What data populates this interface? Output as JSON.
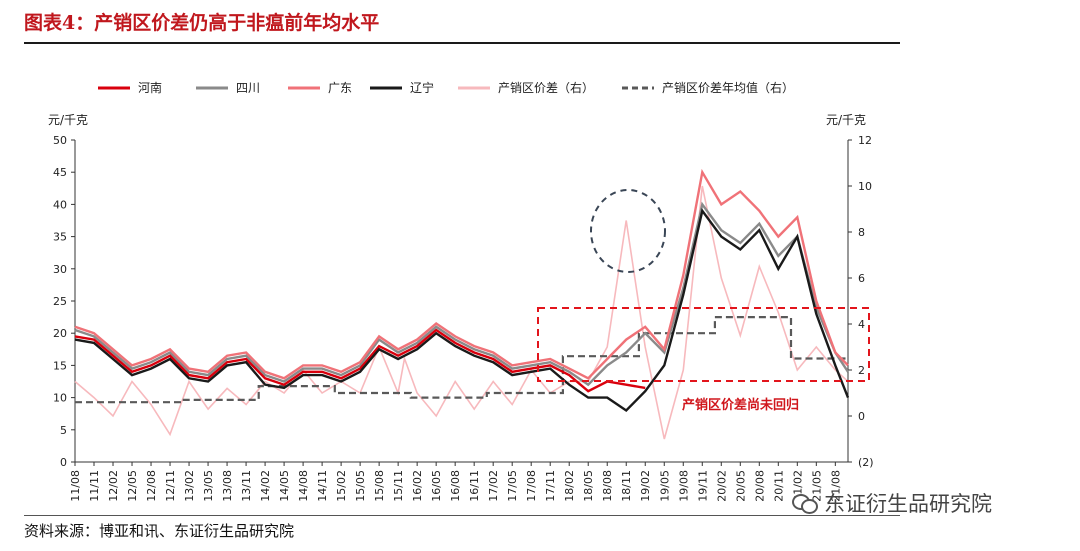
{
  "title": "图表4：产销区价差仍高于非瘟前年均水平",
  "source": "资料来源：博亚和讯、东证衍生品研究院",
  "watermark": "东证衍生品研究院",
  "chart_data": {
    "type": "line",
    "left_unit": "元/千克",
    "right_unit": "元/千克",
    "left_ylim": [
      0,
      50
    ],
    "left_ticks": [
      "0",
      "5",
      "10",
      "15",
      "20",
      "25",
      "30",
      "35",
      "40",
      "45",
      "50"
    ],
    "right_ylim": [
      -2,
      12
    ],
    "right_ticks": [
      "(2)",
      "0",
      "2",
      "4",
      "6",
      "8",
      "10",
      "12"
    ],
    "x_range": [
      "2011-08",
      "2021-10"
    ],
    "x_tick_labels": [
      "11/08",
      "11/11",
      "12/02",
      "12/05",
      "12/08",
      "12/11",
      "13/02",
      "13/05",
      "13/08",
      "13/11",
      "14/02",
      "14/05",
      "14/08",
      "14/11",
      "15/02",
      "15/05",
      "15/08",
      "15/11",
      "16/02",
      "16/05",
      "16/08",
      "16/11",
      "17/02",
      "17/05",
      "17/08",
      "17/11",
      "18/02",
      "18/05",
      "18/08",
      "18/11",
      "19/02",
      "19/05",
      "19/08",
      "19/11",
      "20/02",
      "20/05",
      "20/08",
      "20/11",
      "21/02",
      "21/05",
      "21/08"
    ],
    "annotation": "产销区价差尚未回归",
    "legend": [
      "河南",
      "四川",
      "广东",
      "辽宁",
      "产销区价差（右）",
      "产销区价差年均值（右）"
    ],
    "colors": {
      "henan": "#d9000d",
      "sichuan": "#8a8a8a",
      "guangdong": "#f07278",
      "liaoning": "#1a1a1a",
      "spread": "#f7b9bd",
      "spread_avg": "#595959"
    },
    "henan": [
      [
        "2011-08",
        19.5
      ],
      [
        "2011-11",
        19
      ],
      [
        "2012-02",
        16.5
      ],
      [
        "2012-05",
        14
      ],
      [
        "2012-08",
        15
      ],
      [
        "2012-11",
        16.5
      ],
      [
        "2013-02",
        13.5
      ],
      [
        "2013-05",
        13
      ],
      [
        "2013-08",
        15.5
      ],
      [
        "2013-11",
        16
      ],
      [
        "2014-02",
        13
      ],
      [
        "2014-05",
        12
      ],
      [
        "2014-08",
        14
      ],
      [
        "2014-11",
        14
      ],
      [
        "2015-02",
        13
      ],
      [
        "2015-05",
        14.5
      ],
      [
        "2015-08",
        18
      ],
      [
        "2015-11",
        16.5
      ],
      [
        "2016-02",
        18
      ],
      [
        "2016-05",
        20.5
      ],
      [
        "2016-08",
        18.5
      ],
      [
        "2016-11",
        17
      ],
      [
        "2017-02",
        16
      ],
      [
        "2017-05",
        14
      ],
      [
        "2017-08",
        14.5
      ],
      [
        "2017-11",
        15
      ],
      [
        "2018-02",
        13.5
      ],
      [
        "2018-05",
        11
      ],
      [
        "2018-08",
        12.5
      ],
      [
        "2018-11",
        12
      ],
      [
        "2019-02",
        11.5
      ]
    ],
    "sichuan": [
      [
        "2011-08",
        20.5
      ],
      [
        "2011-11",
        19.5
      ],
      [
        "2012-02",
        17
      ],
      [
        "2012-05",
        14.5
      ],
      [
        "2012-08",
        15.5
      ],
      [
        "2012-11",
        17
      ],
      [
        "2013-02",
        14
      ],
      [
        "2013-05",
        13.5
      ],
      [
        "2013-08",
        16
      ],
      [
        "2013-11",
        16.5
      ],
      [
        "2014-02",
        13.5
      ],
      [
        "2014-05",
        12.5
      ],
      [
        "2014-08",
        14.5
      ],
      [
        "2014-11",
        14.5
      ],
      [
        "2015-02",
        13.5
      ],
      [
        "2015-05",
        15
      ],
      [
        "2015-08",
        19
      ],
      [
        "2015-11",
        17
      ],
      [
        "2016-02",
        18.5
      ],
      [
        "2016-05",
        21
      ],
      [
        "2016-08",
        19
      ],
      [
        "2016-11",
        17.5
      ],
      [
        "2017-02",
        16.5
      ],
      [
        "2017-05",
        14.5
      ],
      [
        "2017-08",
        15
      ],
      [
        "2017-11",
        15.5
      ],
      [
        "2018-02",
        14
      ],
      [
        "2018-05",
        12
      ],
      [
        "2018-08",
        15
      ],
      [
        "2018-11",
        17
      ],
      [
        "2019-02",
        20
      ],
      [
        "2019-05",
        17
      ],
      [
        "2019-08",
        27
      ],
      [
        "2019-11",
        40
      ],
      [
        "2020-02",
        36
      ],
      [
        "2020-05",
        34
      ],
      [
        "2020-08",
        37
      ],
      [
        "2020-11",
        32
      ],
      [
        "2021-02",
        35
      ],
      [
        "2021-05",
        24
      ],
      [
        "2021-08",
        17
      ],
      [
        "2021-10",
        14
      ]
    ],
    "guangdong": [
      [
        "2011-08",
        21
      ],
      [
        "2011-11",
        20
      ],
      [
        "2012-02",
        17.5
      ],
      [
        "2012-05",
        15
      ],
      [
        "2012-08",
        16
      ],
      [
        "2012-11",
        17.5
      ],
      [
        "2013-02",
        14.5
      ],
      [
        "2013-05",
        14
      ],
      [
        "2013-08",
        16.5
      ],
      [
        "2013-11",
        17
      ],
      [
        "2014-02",
        14
      ],
      [
        "2014-05",
        13
      ],
      [
        "2014-08",
        15
      ],
      [
        "2014-11",
        15
      ],
      [
        "2015-02",
        14
      ],
      [
        "2015-05",
        15.5
      ],
      [
        "2015-08",
        19.5
      ],
      [
        "2015-11",
        17.5
      ],
      [
        "2016-02",
        19
      ],
      [
        "2016-05",
        21.5
      ],
      [
        "2016-08",
        19.5
      ],
      [
        "2016-11",
        18
      ],
      [
        "2017-02",
        17
      ],
      [
        "2017-05",
        15
      ],
      [
        "2017-08",
        15.5
      ],
      [
        "2017-11",
        16
      ],
      [
        "2018-02",
        14.5
      ],
      [
        "2018-05",
        13
      ],
      [
        "2018-08",
        16
      ],
      [
        "2018-11",
        19
      ],
      [
        "2019-02",
        21
      ],
      [
        "2019-05",
        17.5
      ],
      [
        "2019-08",
        29
      ],
      [
        "2019-11",
        45
      ],
      [
        "2020-02",
        40
      ],
      [
        "2020-05",
        42
      ],
      [
        "2020-08",
        39
      ],
      [
        "2020-11",
        35
      ],
      [
        "2021-02",
        38
      ],
      [
        "2021-05",
        25
      ],
      [
        "2021-08",
        17
      ],
      [
        "2021-10",
        15
      ]
    ],
    "liaoning": [
      [
        "2011-08",
        19
      ],
      [
        "2011-11",
        18.5
      ],
      [
        "2012-02",
        16
      ],
      [
        "2012-05",
        13.5
      ],
      [
        "2012-08",
        14.5
      ],
      [
        "2012-11",
        16
      ],
      [
        "2013-02",
        13
      ],
      [
        "2013-05",
        12.5
      ],
      [
        "2013-08",
        15
      ],
      [
        "2013-11",
        15.5
      ],
      [
        "2014-02",
        12
      ],
      [
        "2014-05",
        11.5
      ],
      [
        "2014-08",
        13.5
      ],
      [
        "2014-11",
        13.5
      ],
      [
        "2015-02",
        12.5
      ],
      [
        "2015-05",
        14
      ],
      [
        "2015-08",
        17.5
      ],
      [
        "2015-11",
        16
      ],
      [
        "2016-02",
        17.5
      ],
      [
        "2016-05",
        20
      ],
      [
        "2016-08",
        18
      ],
      [
        "2016-11",
        16.5
      ],
      [
        "2017-02",
        15.5
      ],
      [
        "2017-05",
        13.5
      ],
      [
        "2017-08",
        14
      ],
      [
        "2017-11",
        14.5
      ],
      [
        "2018-02",
        12
      ],
      [
        "2018-05",
        10
      ],
      [
        "2018-08",
        10
      ],
      [
        "2018-11",
        8
      ],
      [
        "2019-02",
        11
      ],
      [
        "2019-05",
        15
      ],
      [
        "2019-08",
        26
      ],
      [
        "2019-11",
        39
      ],
      [
        "2020-02",
        35
      ],
      [
        "2020-05",
        33
      ],
      [
        "2020-08",
        36
      ],
      [
        "2020-11",
        30
      ],
      [
        "2021-02",
        35
      ],
      [
        "2021-05",
        23
      ],
      [
        "2021-08",
        15
      ],
      [
        "2021-10",
        10
      ]
    ],
    "spread": [
      [
        "2011-08",
        1.5
      ],
      [
        "2011-11",
        0.8
      ],
      [
        "2012-02",
        0
      ],
      [
        "2012-05",
        1.5
      ],
      [
        "2012-08",
        0.5
      ],
      [
        "2012-11",
        -0.8
      ],
      [
        "2013-02",
        1.5
      ],
      [
        "2013-05",
        0.3
      ],
      [
        "2013-08",
        1.2
      ],
      [
        "2013-11",
        0.5
      ],
      [
        "2014-02",
        1.5
      ],
      [
        "2014-05",
        1
      ],
      [
        "2014-08",
        2
      ],
      [
        "2014-11",
        1
      ],
      [
        "2015-02",
        1.5
      ],
      [
        "2015-05",
        1
      ],
      [
        "2015-08",
        3
      ],
      [
        "2015-11",
        1
      ],
      [
        "2015-12",
        2.5
      ],
      [
        "2016-02",
        1
      ],
      [
        "2016-05",
        0
      ],
      [
        "2016-08",
        1.5
      ],
      [
        "2016-11",
        0.3
      ],
      [
        "2017-02",
        1.5
      ],
      [
        "2017-05",
        0.5
      ],
      [
        "2017-08",
        2
      ],
      [
        "2017-11",
        1
      ],
      [
        "2018-02",
        1.5
      ],
      [
        "2018-05",
        1.5
      ],
      [
        "2018-08",
        3
      ],
      [
        "2018-11",
        8.5
      ],
      [
        "2019-02",
        3
      ],
      [
        "2019-05",
        -1
      ],
      [
        "2019-08",
        2
      ],
      [
        "2019-11",
        10
      ],
      [
        "2020-02",
        6
      ],
      [
        "2020-05",
        3.5
      ],
      [
        "2020-08",
        6.5
      ],
      [
        "2020-11",
        4.5
      ],
      [
        "2021-02",
        2
      ],
      [
        "2021-05",
        3
      ],
      [
        "2021-08",
        2
      ],
      [
        "2021-10",
        1.5
      ]
    ],
    "spread_avg": [
      [
        "2011-08",
        0.6
      ],
      [
        "2013-01",
        0.6
      ],
      [
        "2013-01",
        0.7
      ],
      [
        "2014-01",
        0.7
      ],
      [
        "2014-01",
        1.3
      ],
      [
        "2015-01",
        1.3
      ],
      [
        "2015-01",
        1.0
      ],
      [
        "2016-01",
        1.0
      ],
      [
        "2016-01",
        0.8
      ],
      [
        "2017-01",
        0.8
      ],
      [
        "2017-01",
        1.0
      ],
      [
        "2018-01",
        1.0
      ],
      [
        "2018-01",
        2.6
      ],
      [
        "2019-01",
        2.6
      ],
      [
        "2019-01",
        3.6
      ],
      [
        "2020-01",
        3.6
      ],
      [
        "2020-01",
        4.3
      ],
      [
        "2021-01",
        4.3
      ],
      [
        "2021-01",
        2.5
      ],
      [
        "2021-10",
        2.5
      ]
    ]
  }
}
